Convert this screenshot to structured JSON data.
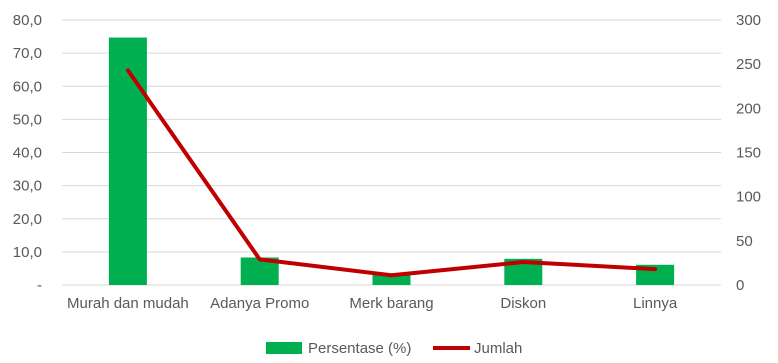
{
  "chart_data": {
    "type": "bar+line",
    "categories": [
      "Murah dan mudah",
      "Adanya Promo",
      "Merk barang",
      "Diskon",
      "Linnya"
    ],
    "series": [
      {
        "name": "Persentase (%)",
        "type": "bar",
        "axis": "left",
        "color": "#00B050",
        "values": [
          74.7,
          8.3,
          3.5,
          7.9,
          6.1
        ]
      },
      {
        "name": "Jumlah",
        "type": "line",
        "axis": "right",
        "color": "#C00000",
        "values": [
          243,
          29,
          11,
          26,
          18
        ]
      }
    ],
    "y_left": {
      "min": 0,
      "max": 80,
      "step": 10,
      "tick_labels": [
        "-",
        "10,0",
        "20,0",
        "30,0",
        "40,0",
        "50,0",
        "60,0",
        "70,0",
        "80,0"
      ]
    },
    "y_right": {
      "min": 0,
      "max": 300,
      "step": 50,
      "tick_labels": [
        "0",
        "50",
        "100",
        "150",
        "200",
        "250",
        "300"
      ]
    },
    "grid": true,
    "legend": {
      "position": "bottom",
      "items": [
        "Persentase (%)",
        "Jumlah"
      ]
    }
  }
}
